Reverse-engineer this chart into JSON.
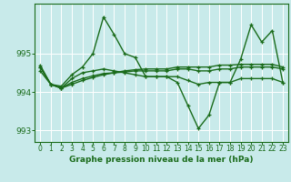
{
  "xlabel": "Graphe pression niveau de la mer (hPa)",
  "x": [
    0,
    1,
    2,
    3,
    4,
    5,
    6,
    7,
    8,
    9,
    10,
    11,
    12,
    13,
    14,
    15,
    16,
    17,
    18,
    19,
    20,
    21,
    22,
    23
  ],
  "line1": [
    994.7,
    994.2,
    994.15,
    994.45,
    994.65,
    995.0,
    995.95,
    995.5,
    995.0,
    994.9,
    994.4,
    994.4,
    994.4,
    994.25,
    993.65,
    993.05,
    993.4,
    994.25,
    994.25,
    994.85,
    995.75,
    995.3,
    995.6,
    994.25
  ],
  "line2": [
    994.65,
    994.2,
    994.1,
    994.35,
    994.5,
    994.55,
    994.6,
    994.55,
    994.5,
    994.45,
    994.4,
    994.4,
    994.4,
    994.4,
    994.3,
    994.2,
    994.25,
    994.25,
    994.25,
    994.35,
    994.35,
    994.35,
    994.35,
    994.25
  ],
  "line3": [
    994.55,
    994.2,
    994.1,
    994.2,
    994.3,
    994.38,
    994.45,
    994.5,
    994.52,
    994.55,
    994.55,
    994.55,
    994.55,
    994.6,
    994.6,
    994.55,
    994.55,
    994.6,
    994.6,
    994.65,
    994.65,
    994.65,
    994.65,
    994.6
  ],
  "line4": [
    994.65,
    994.2,
    994.1,
    994.25,
    994.35,
    994.42,
    994.48,
    994.5,
    994.55,
    994.58,
    994.6,
    994.6,
    994.6,
    994.65,
    994.65,
    994.65,
    994.65,
    994.7,
    994.7,
    994.72,
    994.72,
    994.72,
    994.72,
    994.65
  ],
  "line_color": "#1a6b1a",
  "bg_color": "#c8eaea",
  "grid_color": "#ffffff",
  "text_color": "#1a6b1a",
  "ylim": [
    992.7,
    996.3
  ],
  "yticks": [
    993,
    994,
    995
  ],
  "marker": "+",
  "markersize": 3,
  "linewidth": 1.0
}
